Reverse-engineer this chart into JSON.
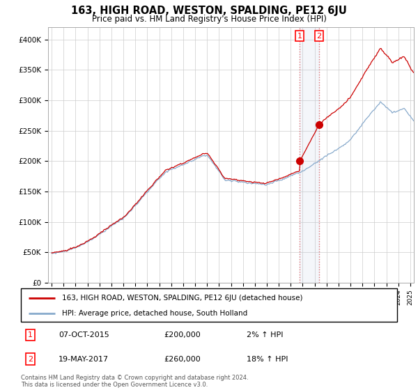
{
  "title": "163, HIGH ROAD, WESTON, SPALDING, PE12 6JU",
  "subtitle": "Price paid vs. HM Land Registry's House Price Index (HPI)",
  "legend_line1": "163, HIGH ROAD, WESTON, SPALDING, PE12 6JU (detached house)",
  "legend_line2": "HPI: Average price, detached house, South Holland",
  "annotation1": {
    "label": "1",
    "date": "07-OCT-2015",
    "price": "£200,000",
    "change": "2% ↑ HPI"
  },
  "annotation2": {
    "label": "2",
    "date": "19-MAY-2017",
    "price": "£260,000",
    "change": "18% ↑ HPI"
  },
  "footer": "Contains HM Land Registry data © Crown copyright and database right 2024.\nThis data is licensed under the Open Government Licence v3.0.",
  "red_color": "#cc0000",
  "blue_color": "#88aacc",
  "fill_color": "#aabbdd",
  "ylim": [
    0,
    420000
  ],
  "yticks": [
    0,
    50000,
    100000,
    150000,
    200000,
    250000,
    300000,
    350000,
    400000
  ],
  "ytick_labels": [
    "£0",
    "£50K",
    "£100K",
    "£150K",
    "£200K",
    "£250K",
    "£300K",
    "£350K",
    "£400K"
  ],
  "xmin": 1995,
  "xmax": 2025,
  "marker1_x": 2015.75,
  "marker1_y": 200000,
  "marker2_x": 2017.38,
  "marker2_y": 260000,
  "vline1_x": 2015.75,
  "vline2_x": 2017.38
}
